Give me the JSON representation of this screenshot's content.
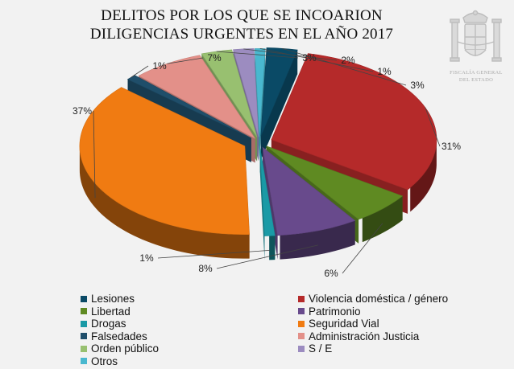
{
  "title_lines": [
    "DELITOS POR LOS QUE SE INCOARION",
    "DILIGENCIAS URGENTES EN EL AÑO 2017"
  ],
  "emblem": {
    "icon": "coat-of-arms-icon",
    "text_lines": [
      "FISCALÍA GENERAL",
      "DEL ESTADO"
    ]
  },
  "chart_data": {
    "type": "pie",
    "style": "3d-exploded",
    "title": "DELITOS POR LOS QUE SE INCOARION DILIGENCIAS URGENTES EN EL AÑO 2017",
    "unit": "%",
    "legend_position": "bottom",
    "slices": [
      {
        "name": "Lesiones",
        "value": 3,
        "label": "3%",
        "color": "#0a4a66"
      },
      {
        "name": "Violencia doméstica / género",
        "value": 31,
        "label": "31%",
        "color": "#b52a2a"
      },
      {
        "name": "Libertad",
        "value": 6,
        "label": "6%",
        "color": "#5f8a22"
      },
      {
        "name": "Patrimonio",
        "value": 8,
        "label": "8%",
        "color": "#684a8c"
      },
      {
        "name": "Drogas",
        "value": 1,
        "label": "1%",
        "color": "#1a9aa6"
      },
      {
        "name": "Seguridad Vial",
        "value": 37,
        "label": "37%",
        "color": "#f07b12"
      },
      {
        "name": "Falsedades",
        "value": 1,
        "label": "1%",
        "color": "#1f4e6a"
      },
      {
        "name": "Administración Justicia",
        "value": 7,
        "label": "7%",
        "color": "#e39089"
      },
      {
        "name": "Orden público",
        "value": 3,
        "label": "3%",
        "color": "#98c070"
      },
      {
        "name": "S / E",
        "value": 2,
        "label": "2%",
        "color": "#9c8cc0"
      },
      {
        "name": "Otros",
        "value": 1,
        "label": "1%",
        "color": "#49b8cf"
      }
    ]
  }
}
